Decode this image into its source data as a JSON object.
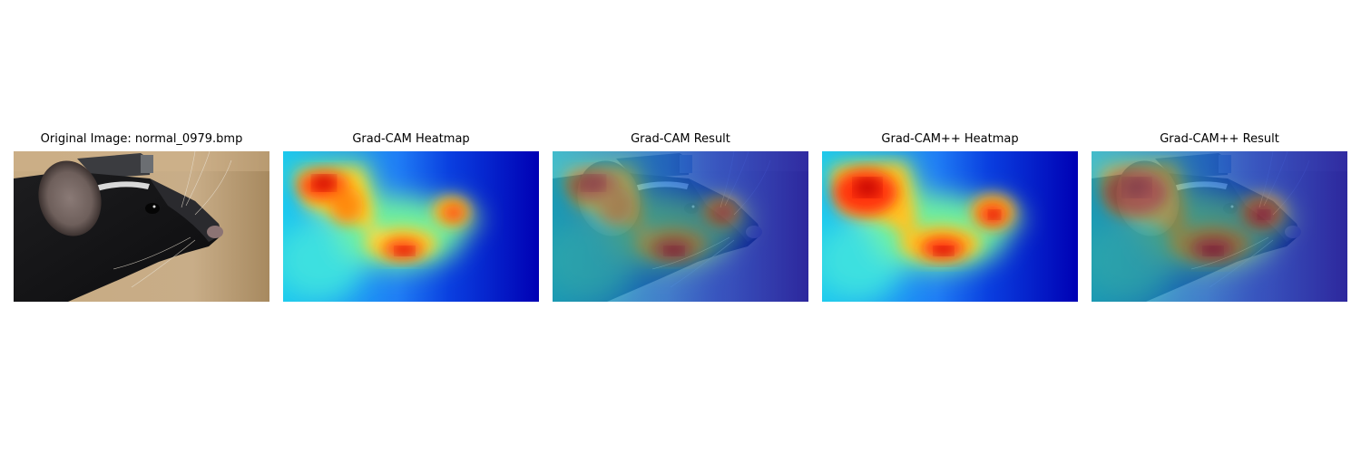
{
  "figure": {
    "panels": [
      {
        "title": "Original Image: normal_0979.bmp",
        "kind": "photo"
      },
      {
        "title": "Grad-CAM Heatmap",
        "kind": "heatmap"
      },
      {
        "title": "Grad-CAM Result",
        "kind": "overlay"
      },
      {
        "title": "Grad-CAM++ Heatmap",
        "kind": "heatmap"
      },
      {
        "title": "Grad-CAM++ Result",
        "kind": "overlay"
      }
    ],
    "colormap": "jet"
  }
}
